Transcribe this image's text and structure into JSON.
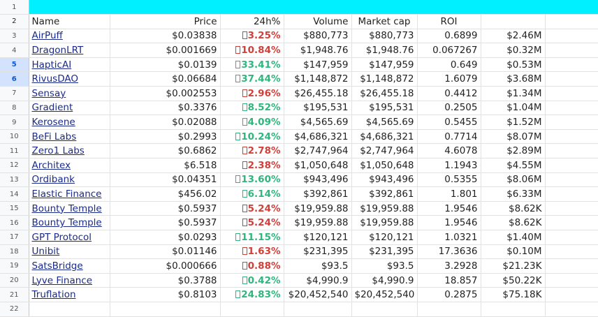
{
  "colors": {
    "banner": "#00f0ff",
    "negative": "#d0403a",
    "positive": "#2fb67c",
    "link": "#1a2a8a"
  },
  "headers": {
    "name": "Name",
    "price": "Price",
    "change": "24h%",
    "volume": "Volume",
    "market_cap": "Market cap",
    "roi": "ROI"
  },
  "rows": [
    {
      "num": "3",
      "name": "AirPuff",
      "price": "$0.03838",
      "change": "3.25%",
      "dir": "neg",
      "volume": "$880,773",
      "mcap": "$880,773",
      "roi": "0.6899",
      "extra": "$2.46M"
    },
    {
      "num": "4",
      "name": "DragonLRT",
      "price": "$0.001669",
      "change": "10.84%",
      "dir": "neg",
      "volume": "$1,948.76",
      "mcap": "$1,948.76",
      "roi": "0.067267",
      "extra": "$0.32M"
    },
    {
      "num": "5",
      "name": "HapticAI",
      "price": "$0.0139",
      "change": "33.41%",
      "dir": "pos",
      "volume": "$147,959",
      "mcap": "$147,959",
      "roi": "0.649",
      "extra": "$0.53M"
    },
    {
      "num": "6",
      "name": "RivusDAO",
      "price": "$0.06684",
      "change": "37.44%",
      "dir": "pos",
      "volume": "$1,148,872",
      "mcap": "$1,148,872",
      "roi": "1.6079",
      "extra": "$3.68M"
    },
    {
      "num": "7",
      "name": "Sensay",
      "price": "$0.002553",
      "change": "2.96%",
      "dir": "neg",
      "volume": "$26,455.18",
      "mcap": "$26,455.18",
      "roi": "0.4412",
      "extra": "$1.34M"
    },
    {
      "num": "8",
      "name": "Gradient",
      "price": "$0.3376",
      "change": "8.52%",
      "dir": "pos",
      "volume": "$195,531",
      "mcap": "$195,531",
      "roi": "0.2505",
      "extra": "$1.04M"
    },
    {
      "num": "9",
      "name": "Kerosene",
      "price": "$0.02088",
      "change": "4.09%",
      "dir": "pos",
      "volume": "$4,565.69",
      "mcap": "$4,565.69",
      "roi": "0.5455",
      "extra": "$1.52M"
    },
    {
      "num": "10",
      "name": "BeFi Labs",
      "price": "$0.2993",
      "change": "10.24%",
      "dir": "pos",
      "volume": "$4,686,321",
      "mcap": "$4,686,321",
      "roi": "0.7714",
      "extra": "$8.07M"
    },
    {
      "num": "11",
      "name": "Zero1 Labs",
      "price": "$0.6862",
      "change": "2.78%",
      "dir": "neg",
      "volume": "$2,747,964",
      "mcap": "$2,747,964",
      "roi": "4.6078",
      "extra": "$2.89M"
    },
    {
      "num": "12",
      "name": "Architex",
      "price": "$6.518",
      "change": "2.38%",
      "dir": "neg",
      "volume": "$1,050,648",
      "mcap": "$1,050,648",
      "roi": "1.1943",
      "extra": "$4.55M"
    },
    {
      "num": "13",
      "name": "Ordibank",
      "price": "$0.04351",
      "change": "13.60%",
      "dir": "pos",
      "volume": "$943,496",
      "mcap": "$943,496",
      "roi": "0.5355",
      "extra": "$8.06M"
    },
    {
      "num": "14",
      "name": "Elastic Finance",
      "price": "$456.02",
      "change": "6.14%",
      "dir": "pos",
      "volume": "$392,861",
      "mcap": "$392,861",
      "roi": "1.801",
      "extra": "$6.33M"
    },
    {
      "num": "15",
      "name": "Bounty Temple",
      "price": "$0.5937",
      "change": "5.24%",
      "dir": "neg",
      "volume": "$19,959.88",
      "mcap": "$19,959.88",
      "roi": "1.9546",
      "extra": "$8.62K"
    },
    {
      "num": "16",
      "name": "Bounty Temple",
      "price": "$0.5937",
      "change": "5.24%",
      "dir": "neg",
      "volume": "$19,959.88",
      "mcap": "$19,959.88",
      "roi": "1.9546",
      "extra": "$8.62K"
    },
    {
      "num": "17",
      "name": "GPT Protocol",
      "price": "$0.0293",
      "change": "11.15%",
      "dir": "pos",
      "volume": "$120,121",
      "mcap": "$120,121",
      "roi": "1.0321",
      "extra": "$1.40M"
    },
    {
      "num": "18",
      "name": "Unibit",
      "price": "$0.01146",
      "change": "1.63%",
      "dir": "neg",
      "volume": "$231,395",
      "mcap": "$231,395",
      "roi": "17.3636",
      "extra": "$0.10M"
    },
    {
      "num": "19",
      "name": "SatsBridge",
      "price": "$0.000666",
      "change": "0.88%",
      "dir": "neg",
      "volume": "$93.5",
      "mcap": "$93.5",
      "roi": "3.2928",
      "extra": "$21.23K"
    },
    {
      "num": "20",
      "name": "Lyve Finance",
      "price": "$0.3788",
      "change": "0.42%",
      "dir": "pos",
      "volume": "$4,990.9",
      "mcap": "$4,990.9",
      "roi": "18.857",
      "extra": "$50.22K"
    },
    {
      "num": "21",
      "name": "Truflation",
      "price": "$0.8103",
      "change": "24.83%",
      "dir": "pos",
      "volume": "$20,452,540",
      "mcap": "$20,452,540",
      "roi": "0.2875",
      "extra": "$75.18K"
    }
  ]
}
